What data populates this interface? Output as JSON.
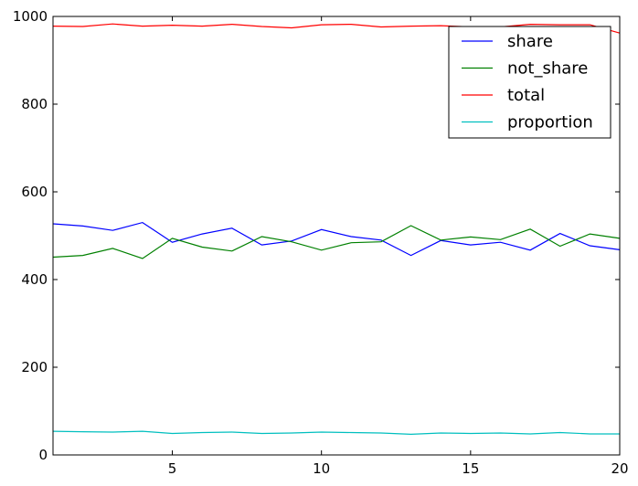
{
  "chart_data": {
    "type": "line",
    "title": "",
    "xlabel": "",
    "ylabel": "",
    "xlim": [
      1,
      20
    ],
    "ylim": [
      0,
      1000
    ],
    "x": [
      1,
      2,
      3,
      4,
      5,
      6,
      7,
      8,
      9,
      10,
      11,
      12,
      13,
      14,
      15,
      16,
      17,
      18,
      19,
      20
    ],
    "xticks": [
      5,
      10,
      15,
      20
    ],
    "yticks": [
      0,
      200,
      400,
      600,
      800,
      1000
    ],
    "grid": false,
    "legend_position": "top-right",
    "series": [
      {
        "name": "share",
        "color": "#0000ff",
        "values": [
          527,
          522,
          512,
          530,
          485,
          504,
          517,
          479,
          488,
          514,
          498,
          490,
          455,
          489,
          479,
          485,
          467,
          505,
          477,
          468
        ]
      },
      {
        "name": "not_share",
        "color": "#008000",
        "values": [
          451,
          455,
          471,
          448,
          494,
          474,
          465,
          498,
          486,
          467,
          484,
          486,
          523,
          490,
          497,
          491,
          515,
          476,
          504,
          494
        ]
      },
      {
        "name": "total",
        "color": "#ff0000",
        "values": [
          978,
          977,
          983,
          978,
          980,
          978,
          982,
          977,
          974,
          981,
          982,
          976,
          978,
          979,
          976,
          976,
          982,
          981,
          981,
          962
        ]
      },
      {
        "name": "proportion",
        "color": "#00bfbf",
        "values": [
          54,
          53,
          52,
          54,
          49,
          51,
          52,
          49,
          50,
          52,
          51,
          50,
          47,
          50,
          49,
          50,
          48,
          51,
          48,
          48
        ]
      }
    ]
  }
}
